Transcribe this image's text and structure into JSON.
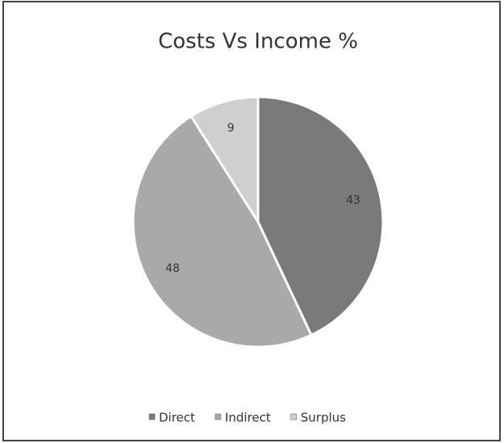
{
  "chart_data": {
    "type": "pie",
    "title": "Costs Vs Income %",
    "categories": [
      "Direct",
      "Indirect",
      "Surplus"
    ],
    "values": [
      43,
      48,
      9
    ],
    "colors": [
      "#7a7a7a",
      "#a9a9a9",
      "#cfcfcf"
    ],
    "legend": "bottom"
  }
}
